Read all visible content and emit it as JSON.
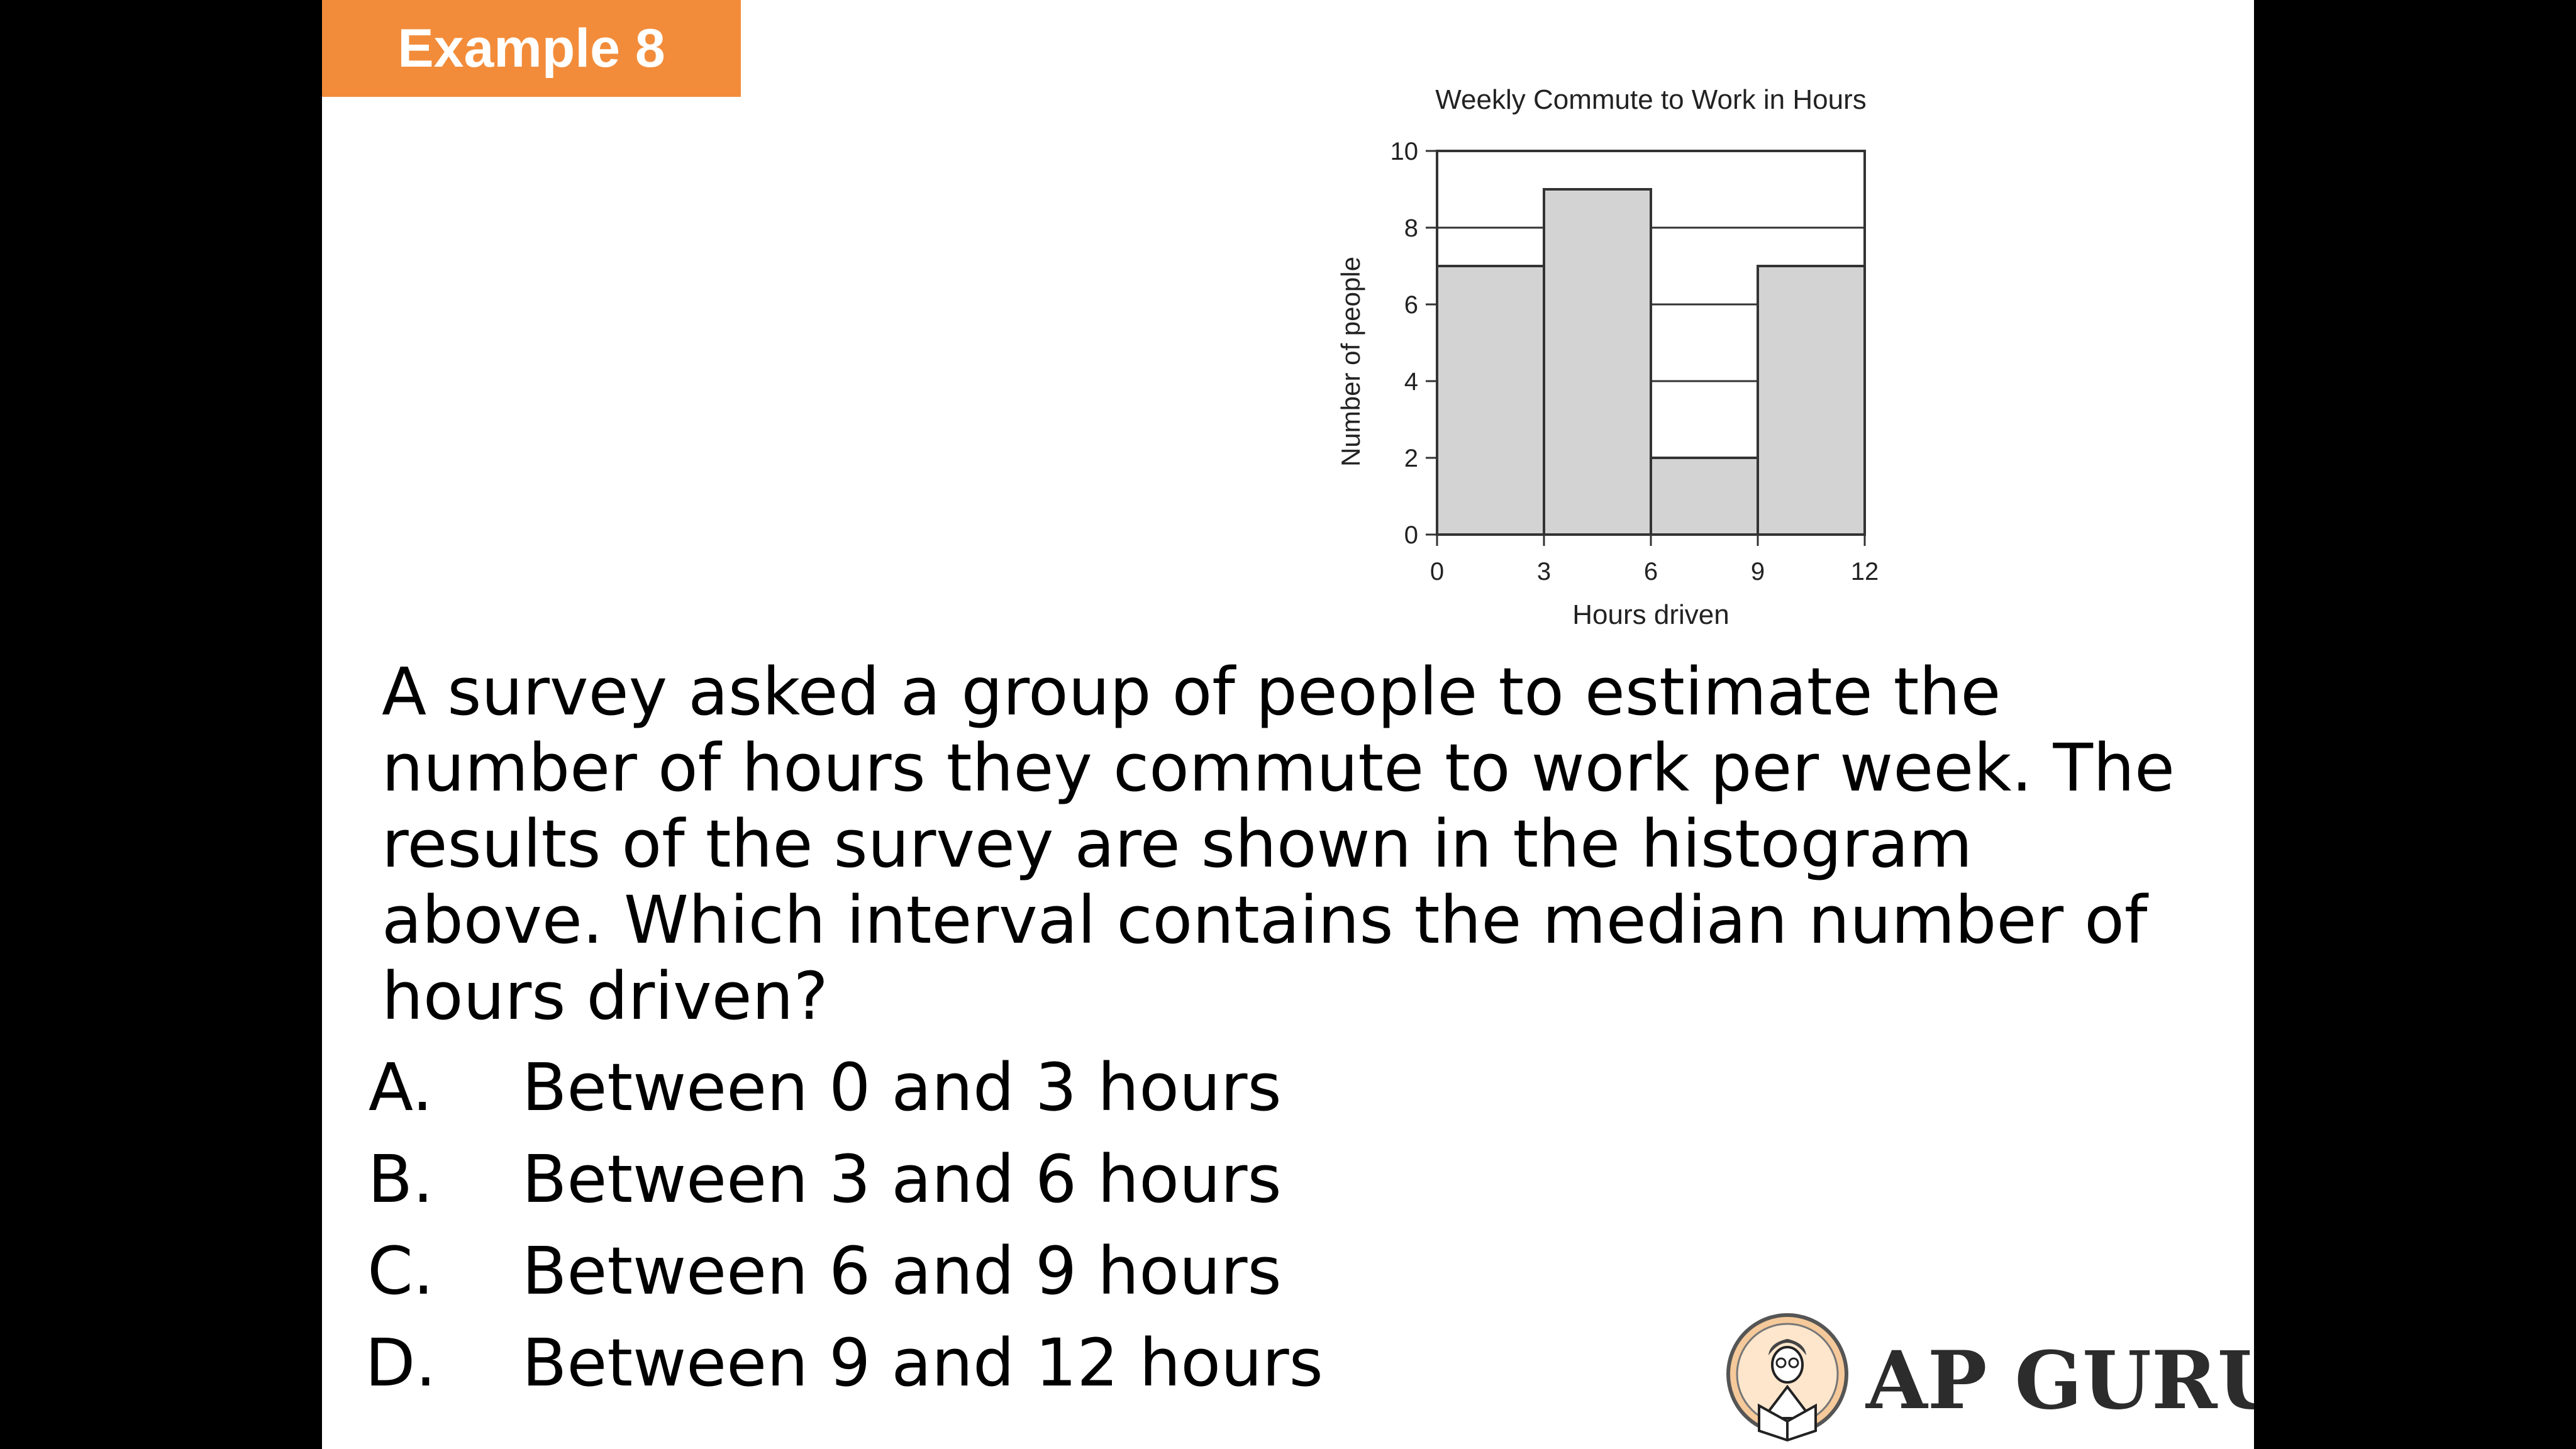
{
  "header": {
    "tag": "Example 8",
    "tag_color": "#f28c3a"
  },
  "chart_data": {
    "type": "bar",
    "title": "Weekly Commute to Work in Hours",
    "xlabel": "Hours driven",
    "ylabel": "Number of people",
    "bins": [
      [
        0,
        3
      ],
      [
        3,
        6
      ],
      [
        6,
        9
      ],
      [
        9,
        12
      ]
    ],
    "values": [
      7,
      9,
      2,
      7
    ],
    "xticks": [
      "0",
      "3",
      "6",
      "9",
      "12"
    ],
    "yticks": [
      "0",
      "2",
      "4",
      "6",
      "8",
      "10"
    ],
    "xlim": [
      0,
      12
    ],
    "ylim": [
      0,
      10
    ],
    "grid": "horizontal",
    "bar_color": "#d3d3d3"
  },
  "question": "A survey asked a group of people to estimate the number of hours they commute to work per week.  The results of the survey are shown in the histogram above. Which interval contains the median number of hours driven?",
  "options": [
    {
      "letter": "A.",
      "text": "Between 0 and 3 hours"
    },
    {
      "letter": "B.",
      "text": "Between 3 and 6 hours"
    },
    {
      "letter": "C.",
      "text": "Between 6 and 9 hours"
    },
    {
      "letter": "D.",
      "text": "Between 9 and 12 hours"
    }
  ],
  "brand": {
    "name": "AP GURU",
    "logo_icon": "reading-person-icon"
  }
}
